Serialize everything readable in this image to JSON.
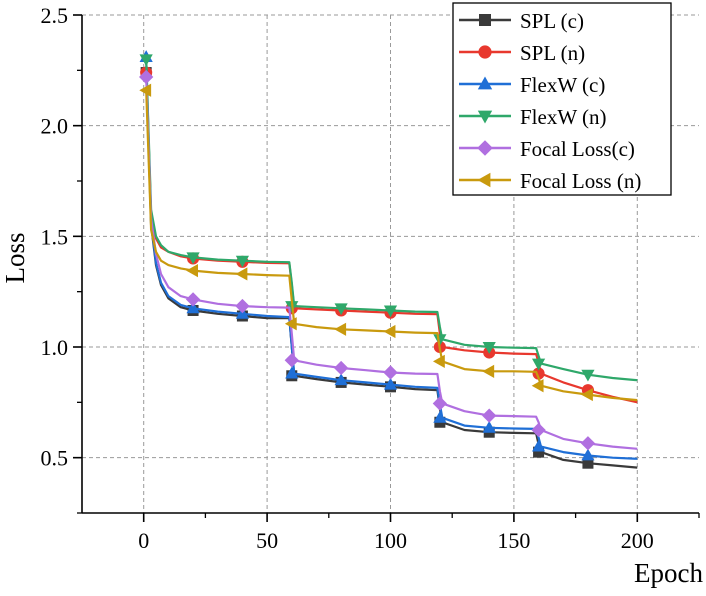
{
  "chart_data": {
    "type": "line",
    "title": "",
    "xlabel": "Epoch",
    "ylabel": "Loss",
    "xlim": [
      -25,
      225
    ],
    "ylim": [
      0.25,
      2.5
    ],
    "xticks": [
      0,
      50,
      100,
      150,
      200
    ],
    "yticks": [
      0.5,
      1.0,
      1.5,
      2.0,
      2.5
    ],
    "xtick_labels": [
      "0",
      "50",
      "100",
      "150",
      "200"
    ],
    "ytick_labels": [
      "0.5",
      "1.0",
      "1.5",
      "2.0",
      "2.5"
    ],
    "grid": true,
    "legend_position": "top-right",
    "marker_epochs": [
      1,
      20,
      40,
      60,
      80,
      100,
      120,
      140,
      160,
      180
    ],
    "series": [
      {
        "name": "SPL (c)",
        "color": "#3a3a3a",
        "marker": "square",
        "x": [
          1,
          3,
          5,
          7,
          10,
          15,
          20,
          30,
          40,
          50,
          59,
          60,
          61,
          70,
          80,
          90,
          100,
          110,
          119,
          120,
          121,
          130,
          140,
          150,
          159,
          160,
          161,
          170,
          180,
          190,
          200
        ],
        "y": [
          2.24,
          1.55,
          1.37,
          1.28,
          1.22,
          1.18,
          1.165,
          1.15,
          1.14,
          1.13,
          1.13,
          1.0,
          0.87,
          0.855,
          0.84,
          0.83,
          0.82,
          0.81,
          0.805,
          0.72,
          0.66,
          0.625,
          0.615,
          0.612,
          0.61,
          0.56,
          0.525,
          0.49,
          0.475,
          0.465,
          0.455
        ],
        "markers_y": [
          2.24,
          1.165,
          1.14,
          0.87,
          0.84,
          0.82,
          0.66,
          0.615,
          0.525,
          0.475
        ]
      },
      {
        "name": "SPL (n)",
        "color": "#e8382e",
        "marker": "circle",
        "x": [
          1,
          3,
          5,
          7,
          10,
          15,
          20,
          30,
          40,
          50,
          59,
          60,
          61,
          70,
          80,
          90,
          100,
          110,
          119,
          120,
          121,
          130,
          140,
          150,
          159,
          160,
          161,
          170,
          180,
          190,
          200
        ],
        "y": [
          2.24,
          1.6,
          1.49,
          1.45,
          1.43,
          1.41,
          1.4,
          1.39,
          1.385,
          1.38,
          1.378,
          1.28,
          1.175,
          1.17,
          1.165,
          1.16,
          1.155,
          1.15,
          1.148,
          1.06,
          1.0,
          0.985,
          0.975,
          0.97,
          0.968,
          0.93,
          0.88,
          0.84,
          0.805,
          0.775,
          0.75
        ],
        "markers_y": [
          2.24,
          1.4,
          1.385,
          1.175,
          1.165,
          1.155,
          1.0,
          0.975,
          0.88,
          0.805
        ]
      },
      {
        "name": "FlexW (c)",
        "color": "#1f6fd6",
        "marker": "triangle-up",
        "x": [
          1,
          3,
          5,
          7,
          10,
          15,
          20,
          30,
          40,
          50,
          59,
          60,
          61,
          70,
          80,
          90,
          100,
          110,
          119,
          120,
          121,
          130,
          140,
          150,
          159,
          160,
          161,
          170,
          180,
          190,
          200
        ],
        "y": [
          2.31,
          1.56,
          1.38,
          1.29,
          1.23,
          1.19,
          1.175,
          1.16,
          1.15,
          1.14,
          1.135,
          1.0,
          0.88,
          0.865,
          0.85,
          0.84,
          0.83,
          0.82,
          0.815,
          0.74,
          0.68,
          0.645,
          0.635,
          0.632,
          0.63,
          0.59,
          0.55,
          0.525,
          0.51,
          0.5,
          0.495
        ],
        "markers_y": [
          2.31,
          1.175,
          1.15,
          0.88,
          0.85,
          0.83,
          0.68,
          0.635,
          0.55,
          0.51
        ]
      },
      {
        "name": "FlexW (n)",
        "color": "#2fa86a",
        "marker": "triangle-down",
        "x": [
          1,
          3,
          5,
          7,
          10,
          15,
          20,
          30,
          40,
          50,
          59,
          60,
          61,
          70,
          80,
          90,
          100,
          110,
          119,
          120,
          121,
          130,
          140,
          150,
          159,
          160,
          161,
          170,
          180,
          190,
          200
        ],
        "y": [
          2.3,
          1.62,
          1.5,
          1.46,
          1.43,
          1.415,
          1.405,
          1.395,
          1.39,
          1.385,
          1.383,
          1.29,
          1.185,
          1.18,
          1.175,
          1.17,
          1.165,
          1.16,
          1.158,
          1.09,
          1.035,
          1.01,
          1.0,
          0.997,
          0.995,
          0.96,
          0.925,
          0.9,
          0.875,
          0.86,
          0.85
        ],
        "markers_y": [
          2.3,
          1.405,
          1.39,
          1.185,
          1.175,
          1.165,
          1.035,
          1.0,
          0.925,
          0.875
        ]
      },
      {
        "name": "Focal Loss(c)",
        "color": "#b06fe0",
        "marker": "diamond",
        "x": [
          1,
          3,
          5,
          7,
          10,
          15,
          20,
          30,
          40,
          50,
          59,
          60,
          61,
          70,
          80,
          90,
          100,
          110,
          119,
          120,
          121,
          130,
          140,
          150,
          159,
          160,
          161,
          170,
          180,
          190,
          200
        ],
        "y": [
          2.22,
          1.58,
          1.42,
          1.33,
          1.27,
          1.23,
          1.215,
          1.195,
          1.185,
          1.18,
          1.178,
          1.06,
          0.94,
          0.92,
          0.905,
          0.895,
          0.885,
          0.88,
          0.878,
          0.8,
          0.745,
          0.71,
          0.69,
          0.688,
          0.685,
          0.66,
          0.625,
          0.585,
          0.565,
          0.55,
          0.54
        ],
        "markers_y": [
          2.22,
          1.215,
          1.185,
          0.94,
          0.905,
          0.885,
          0.745,
          0.69,
          0.625,
          0.565
        ]
      },
      {
        "name": "Focal Loss (n)",
        "color": "#c99a0e",
        "marker": "triangle-left",
        "x": [
          1,
          3,
          5,
          7,
          10,
          15,
          20,
          30,
          40,
          50,
          59,
          60,
          61,
          70,
          80,
          90,
          100,
          110,
          119,
          120,
          121,
          130,
          140,
          150,
          159,
          160,
          161,
          170,
          180,
          190,
          200
        ],
        "y": [
          2.16,
          1.53,
          1.43,
          1.39,
          1.37,
          1.355,
          1.345,
          1.335,
          1.33,
          1.325,
          1.322,
          1.21,
          1.105,
          1.09,
          1.08,
          1.075,
          1.07,
          1.065,
          1.063,
          0.99,
          0.935,
          0.9,
          0.89,
          0.89,
          0.888,
          0.86,
          0.825,
          0.8,
          0.785,
          0.77,
          0.76
        ],
        "markers_y": [
          2.16,
          1.345,
          1.33,
          1.105,
          1.08,
          1.07,
          0.935,
          0.89,
          0.825,
          0.785
        ]
      }
    ]
  }
}
